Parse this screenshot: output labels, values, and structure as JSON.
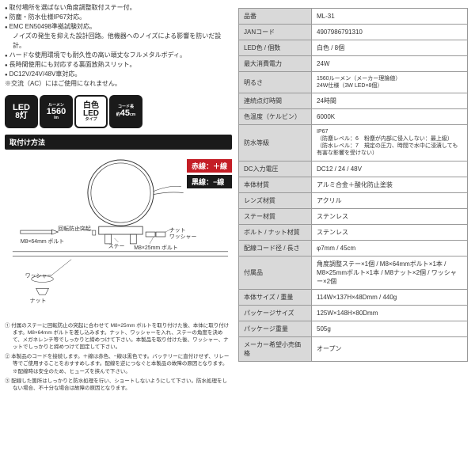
{
  "bullets": [
    "取付場所を選ばない角度調整取付ステー付。",
    "防塵・防水仕様IP67対応。",
    "EMC EN50498準拠試験対応。"
  ],
  "bullet_note": "ノイズの発生を抑えた設計回路。他機器へのノイズによる影響を防いだ設計。",
  "bullets2": [
    "ハードな使用環境でも耐久性の高い頑丈なフルメタルボディ。",
    "長時間使用にも対応する裏面放熱スリット。",
    "DC12V/24V/48V車対応。"
  ],
  "asterisk": "交流（AC）にはご使用になれません。",
  "badges": {
    "b1_top": "LED",
    "b1_bot": "8灯",
    "b2_tiny": "ルーメン",
    "b2_top": "1560",
    "b2_unit": "lm",
    "b3_top": "白色",
    "b3_bot": "LED",
    "b3_tiny": "タイプ",
    "b4_tiny": "コード長",
    "b4_top": "45",
    "b4_sub": "約",
    "b4_unit": "cm"
  },
  "section_title": "取付け方法",
  "wire_red": "赤線：＋線",
  "wire_black": "黒線：−線",
  "diagram_labels": {
    "bolt64": "M8×64mm ボルト",
    "rotation": "回転防止突起",
    "stay": "ステー",
    "bolt25": "M8×25mm ボルト",
    "nut_washer": "ナット\nワッシャー",
    "washer": "ワッシャー",
    "nut": "ナット"
  },
  "notes": [
    "① 付属のステーに回転防止の突起に合わせて M8×25mm ボルトを取り付けた後、本体に取り付けます。M8×64mm ボルトを差し込みます。ナット、ワッシャーを入れ、ステーの角度を決めて、メガネレンチ等でしっかりと締めつけて下さい。本製品を取り付けた後、ワッシャー、ナットでしっかりと締めつけて固定して下さい。",
    "② 本製品のコードを接続します。＋線は赤色、−線は黒色です。バッテリーに直付けせず、リレー等でご使用することをおすすめします。配線を逆につなぐと本製品の故障の原因となります。※配線時は安全のため、ヒューズを挟んで下さい。",
    "③ 配線した箇所はしっかりと防水処理を行い、ショートしないようにして下さい。防水処理をしない場合、不十分な場合は故障の原因となります。"
  ],
  "spec": {
    "rows": [
      [
        "品番",
        "ML-31"
      ],
      [
        "JANコード",
        "4907986791310"
      ],
      [
        "LED色 / 個数",
        "白色 / 8個"
      ],
      [
        "最大消費電力",
        "24W"
      ],
      [
        "明るさ",
        "1560ルーメン（メーカー理論値）\n24W仕様（3W LED×8個）"
      ],
      [
        "連続点灯時間",
        "24時間"
      ],
      [
        "色温度（ケルビン）",
        "6000K"
      ],
      [
        "防水等級",
        "IP67\n（防塵レベル：6　粉塵が内部に侵入しない：最上級）\n（防水レベル：7　規定の圧力、時間で水中に浸漬しても有害な影響を受けない）"
      ],
      [
        "DC入力電圧",
        "DC12 / 24 / 48V"
      ],
      [
        "本体材質",
        "アルミ合金＋酸化防止塗装"
      ],
      [
        "レンズ材質",
        "アクリル"
      ],
      [
        "ステー材質",
        "ステンレス"
      ],
      [
        "ボルト / ナット材質",
        "ステンレス"
      ],
      [
        "配線コード径 / 長さ",
        "φ7mm / 45cm"
      ],
      [
        "付属品",
        "角度調整ステー×1個 / M8×64mmボルト×1本 / M8×25mmボルト×1本 / M8ナット×2個 / ワッシャー×2個"
      ],
      [
        "本体サイズ / 重量",
        "114W×137H×48Dmm / 440g"
      ],
      [
        "パッケージサイズ",
        "125W×148H×80Dmm"
      ],
      [
        "パッケージ重量",
        "505g"
      ],
      [
        "メーカー希望小売価格",
        "オープン"
      ]
    ]
  }
}
